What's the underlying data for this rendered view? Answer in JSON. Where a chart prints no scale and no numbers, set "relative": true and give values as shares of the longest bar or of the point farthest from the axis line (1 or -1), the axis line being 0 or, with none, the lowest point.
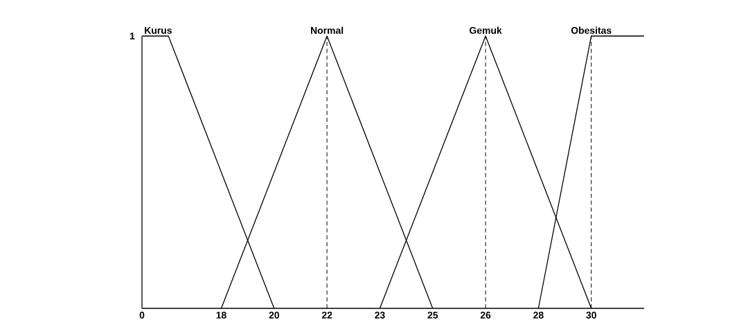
{
  "chart_data": {
    "type": "line",
    "marker": "none",
    "line_style": "solid",
    "relative": true,
    "categories": [
      "0",
      null,
      null,
      "18",
      null,
      "20",
      null,
      "22",
      null,
      "23",
      null,
      "25",
      null,
      "26",
      null,
      "28",
      null,
      "30",
      null,
      null
    ],
    "series": [
      {
        "name": "Kurus",
        "color": "#000000",
        "values": [
          1,
          1,
          null,
          null,
          null,
          0,
          null,
          null,
          null,
          null,
          null,
          null,
          null,
          null,
          null,
          null,
          null,
          null,
          null,
          null
        ]
      },
      {
        "name": "Normal",
        "color": "#000000",
        "values": [
          null,
          null,
          null,
          0,
          null,
          null,
          null,
          1,
          null,
          null,
          null,
          0,
          null,
          null,
          null,
          null,
          null,
          null,
          null,
          null
        ]
      },
      {
        "name": "Gemuk",
        "color": "#000000",
        "values": [
          null,
          null,
          null,
          null,
          null,
          null,
          null,
          null,
          null,
          0,
          null,
          null,
          null,
          1,
          null,
          null,
          null,
          0,
          null,
          null
        ]
      },
      {
        "name": "Obesitas",
        "color": "#000000",
        "values": [
          null,
          null,
          null,
          null,
          null,
          null,
          null,
          null,
          null,
          null,
          null,
          null,
          null,
          null,
          null,
          0,
          null,
          1,
          null,
          1
        ]
      }
    ],
    "ref_lines": [
      {
        "axis": "x",
        "value": "22",
        "line_style": "dashed",
        "color": "#000000"
      },
      {
        "axis": "x",
        "value": "26",
        "line_style": "dashed",
        "color": "#000000"
      },
      {
        "axis": "x",
        "value": "30",
        "line_style": "dashed",
        "color": "#000000"
      }
    ],
    "annotations": [
      "1"
    ]
  }
}
